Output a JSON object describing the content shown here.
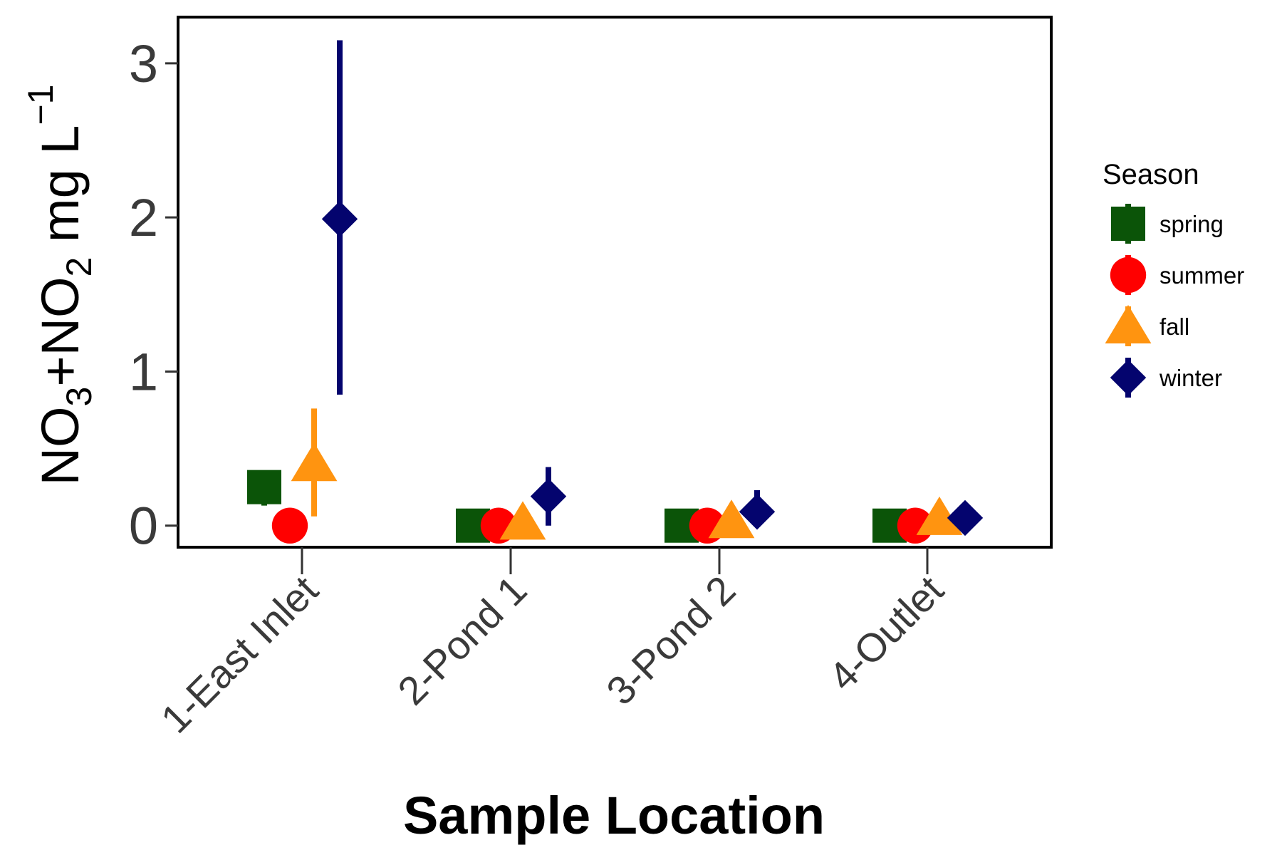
{
  "chart_data": {
    "type": "scatter",
    "xlabel": "Sample Location",
    "ylabel": {
      "parts": [
        "NO",
        "3",
        "+NO",
        "2",
        " mg L",
        "−1"
      ],
      "styles": [
        "normal",
        "sub",
        "normal",
        "sub",
        "normal",
        "sup"
      ]
    },
    "categories": [
      "1-East Inlet",
      "2-Pond 1",
      "3-Pond 2",
      "4-Outlet"
    ],
    "ylim": [
      -0.14,
      3.3
    ],
    "yticks": [
      0,
      1,
      2,
      3
    ],
    "grid": false,
    "legend": {
      "title": "Season",
      "position": "right"
    },
    "series": [
      {
        "name": "spring",
        "color": "#0b5408",
        "marker": "square",
        "values": [
          0.25,
          0.0,
          0.0,
          0.0
        ],
        "err_low": [
          0.13,
          0.0,
          0.0,
          0.0
        ],
        "err_high": [
          0.3,
          0.0,
          0.0,
          0.0
        ]
      },
      {
        "name": "summer",
        "color": "#ff0000",
        "marker": "circle",
        "values": [
          0.0,
          0.0,
          0.0,
          0.0
        ],
        "err_low": [
          0.0,
          0.0,
          0.0,
          0.0
        ],
        "err_high": [
          0.0,
          0.0,
          0.0,
          0.0
        ]
      },
      {
        "name": "fall",
        "color": "#ff9410",
        "marker": "triangle",
        "values": [
          0.4,
          0.02,
          0.03,
          0.05
        ],
        "err_low": [
          0.06,
          0.0,
          0.0,
          0.0
        ],
        "err_high": [
          0.76,
          0.04,
          0.06,
          0.09
        ]
      },
      {
        "name": "winter",
        "color": "#04046e",
        "marker": "diamond",
        "values": [
          1.99,
          0.19,
          0.09,
          0.05
        ],
        "err_low": [
          0.85,
          0.0,
          0.0,
          0.0
        ],
        "err_high": [
          3.15,
          0.38,
          0.23,
          0.09
        ]
      }
    ]
  }
}
